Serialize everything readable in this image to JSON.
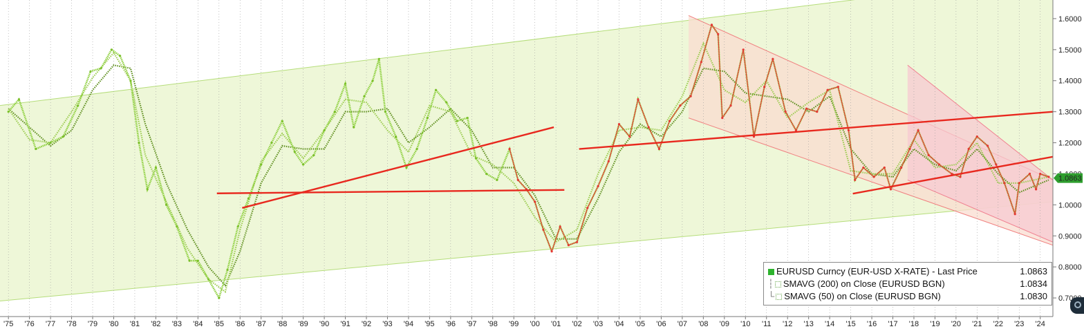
{
  "chart_data": {
    "type": "line",
    "y_axis": {
      "ticks": [
        0.7,
        0.8,
        0.9,
        1.0,
        1.1,
        1.2,
        1.3,
        1.4,
        1.5,
        1.6
      ],
      "tick_labels": [
        "0.7000",
        "0.8000",
        "0.9000",
        "1.0000",
        "1.1000",
        "1.2000",
        "1.3000",
        "1.4000",
        "1.5000",
        "1.6000"
      ],
      "position": "right",
      "ylim": [
        0.64,
        1.66
      ]
    },
    "x_axis": {
      "tick_labels": [
        "'75",
        "'76",
        "'77",
        "'78",
        "'79",
        "'80",
        "'81",
        "'82",
        "'83",
        "'84",
        "'85",
        "'86",
        "'87",
        "'88",
        "'89",
        "'90",
        "'91",
        "'92",
        "'93",
        "'94",
        "'95",
        "'96",
        "'97",
        "'98",
        "'99",
        "'00",
        "'01",
        "'02",
        "'03",
        "'04",
        "'05",
        "'06",
        "'07",
        "'08",
        "'09",
        "'10",
        "'11",
        "'12",
        "'13",
        "'14",
        "'15",
        "'16",
        "'17",
        "'18",
        "'19",
        "'20",
        "'21",
        "'22",
        "'23",
        "'24"
      ],
      "xlim": [
        1974.6,
        2024.6
      ]
    },
    "grid": "vertical dotted",
    "last_price_label": "1.0863",
    "series": [
      {
        "name": "EURUSD Curncy (EUR-USD X-RATE) - Last Price",
        "last": "1.0863",
        "color": "#e53935",
        "points": [
          [
            1975.0,
            1.3
          ],
          [
            1975.5,
            1.34
          ],
          [
            1976.3,
            1.18
          ],
          [
            1977.0,
            1.2
          ],
          [
            1977.6,
            1.22
          ],
          [
            1978.3,
            1.32
          ],
          [
            1978.9,
            1.43
          ],
          [
            1979.4,
            1.44
          ],
          [
            1979.9,
            1.5
          ],
          [
            1980.3,
            1.48
          ],
          [
            1980.8,
            1.4
          ],
          [
            1981.2,
            1.2
          ],
          [
            1981.6,
            1.05
          ],
          [
            1982.0,
            1.12
          ],
          [
            1982.5,
            1.0
          ],
          [
            1983.0,
            0.93
          ],
          [
            1983.6,
            0.82
          ],
          [
            1984.0,
            0.82
          ],
          [
            1984.5,
            0.76
          ],
          [
            1985.0,
            0.7
          ],
          [
            1985.4,
            0.79
          ],
          [
            1985.9,
            0.93
          ],
          [
            1986.4,
            1.02
          ],
          [
            1987.0,
            1.13
          ],
          [
            1987.5,
            1.2
          ],
          [
            1988.0,
            1.27
          ],
          [
            1988.6,
            1.17
          ],
          [
            1989.0,
            1.13
          ],
          [
            1989.5,
            1.16
          ],
          [
            1990.0,
            1.24
          ],
          [
            1990.5,
            1.3
          ],
          [
            1991.0,
            1.39
          ],
          [
            1991.4,
            1.25
          ],
          [
            1991.9,
            1.35
          ],
          [
            1992.3,
            1.4
          ],
          [
            1992.6,
            1.47
          ],
          [
            1992.9,
            1.3
          ],
          [
            1993.4,
            1.22
          ],
          [
            1993.9,
            1.12
          ],
          [
            1994.4,
            1.18
          ],
          [
            1994.9,
            1.28
          ],
          [
            1995.3,
            1.37
          ],
          [
            1995.8,
            1.33
          ],
          [
            1996.3,
            1.27
          ],
          [
            1996.8,
            1.28
          ],
          [
            1997.2,
            1.15
          ],
          [
            1997.7,
            1.1
          ],
          [
            1998.2,
            1.08
          ],
          [
            1998.8,
            1.18
          ],
          [
            1999.2,
            1.08
          ],
          [
            1999.6,
            1.05
          ],
          [
            2000.0,
            1.01
          ],
          [
            2000.4,
            0.92
          ],
          [
            2000.8,
            0.85
          ],
          [
            2001.2,
            0.93
          ],
          [
            2001.6,
            0.87
          ],
          [
            2002.0,
            0.88
          ],
          [
            2002.5,
            0.99
          ],
          [
            2003.0,
            1.06
          ],
          [
            2003.5,
            1.14
          ],
          [
            2004.0,
            1.26
          ],
          [
            2004.5,
            1.22
          ],
          [
            2004.9,
            1.34
          ],
          [
            2005.4,
            1.25
          ],
          [
            2005.9,
            1.18
          ],
          [
            2006.4,
            1.27
          ],
          [
            2006.9,
            1.32
          ],
          [
            2007.4,
            1.35
          ],
          [
            2007.9,
            1.46
          ],
          [
            2008.4,
            1.58
          ],
          [
            2008.7,
            1.55
          ],
          [
            2008.9,
            1.28
          ],
          [
            2009.3,
            1.32
          ],
          [
            2009.9,
            1.5
          ],
          [
            2010.4,
            1.22
          ],
          [
            2010.9,
            1.38
          ],
          [
            2011.3,
            1.47
          ],
          [
            2011.9,
            1.3
          ],
          [
            2012.4,
            1.24
          ],
          [
            2012.9,
            1.31
          ],
          [
            2013.4,
            1.3
          ],
          [
            2013.9,
            1.37
          ],
          [
            2014.4,
            1.38
          ],
          [
            2014.9,
            1.24
          ],
          [
            2015.2,
            1.08
          ],
          [
            2015.6,
            1.12
          ],
          [
            2016.1,
            1.09
          ],
          [
            2016.6,
            1.12
          ],
          [
            2016.9,
            1.05
          ],
          [
            2017.4,
            1.12
          ],
          [
            2017.8,
            1.18
          ],
          [
            2018.2,
            1.24
          ],
          [
            2018.7,
            1.16
          ],
          [
            2019.2,
            1.13
          ],
          [
            2019.8,
            1.1
          ],
          [
            2020.2,
            1.09
          ],
          [
            2020.6,
            1.18
          ],
          [
            2021.0,
            1.22
          ],
          [
            2021.5,
            1.19
          ],
          [
            2021.9,
            1.13
          ],
          [
            2022.3,
            1.07
          ],
          [
            2022.8,
            0.97
          ],
          [
            2023.0,
            1.07
          ],
          [
            2023.5,
            1.1
          ],
          [
            2023.8,
            1.05
          ],
          [
            2024.0,
            1.1
          ],
          [
            2024.4,
            1.09
          ]
        ]
      },
      {
        "name": "SMAVG (200) on Close (EURUSD BGN)",
        "last": "1.0834",
        "color": "#5f8f1f",
        "points": [
          [
            1975.0,
            1.31
          ],
          [
            1976.0,
            1.25
          ],
          [
            1977.0,
            1.19
          ],
          [
            1978.0,
            1.24
          ],
          [
            1979.0,
            1.37
          ],
          [
            1980.0,
            1.45
          ],
          [
            1980.8,
            1.44
          ],
          [
            1981.5,
            1.26
          ],
          [
            1982.5,
            1.07
          ],
          [
            1983.5,
            0.92
          ],
          [
            1984.5,
            0.8
          ],
          [
            1985.3,
            0.74
          ],
          [
            1986.0,
            0.85
          ],
          [
            1987.0,
            1.07
          ],
          [
            1988.0,
            1.19
          ],
          [
            1989.0,
            1.18
          ],
          [
            1990.0,
            1.18
          ],
          [
            1991.0,
            1.3
          ],
          [
            1992.0,
            1.3
          ],
          [
            1993.0,
            1.31
          ],
          [
            1994.0,
            1.2
          ],
          [
            1995.0,
            1.25
          ],
          [
            1996.0,
            1.31
          ],
          [
            1997.0,
            1.24
          ],
          [
            1998.0,
            1.12
          ],
          [
            1999.0,
            1.12
          ],
          [
            2000.0,
            1.03
          ],
          [
            2001.0,
            0.89
          ],
          [
            2002.0,
            0.89
          ],
          [
            2003.0,
            1.02
          ],
          [
            2004.0,
            1.17
          ],
          [
            2005.0,
            1.26
          ],
          [
            2006.0,
            1.22
          ],
          [
            2007.0,
            1.3
          ],
          [
            2008.0,
            1.44
          ],
          [
            2009.0,
            1.43
          ],
          [
            2010.0,
            1.36
          ],
          [
            2011.0,
            1.35
          ],
          [
            2012.0,
            1.34
          ],
          [
            2013.0,
            1.3
          ],
          [
            2014.0,
            1.35
          ],
          [
            2015.0,
            1.18
          ],
          [
            2016.0,
            1.1
          ],
          [
            2017.0,
            1.09
          ],
          [
            2018.0,
            1.18
          ],
          [
            2019.0,
            1.13
          ],
          [
            2020.0,
            1.11
          ],
          [
            2021.0,
            1.18
          ],
          [
            2022.0,
            1.1
          ],
          [
            2023.0,
            1.04
          ],
          [
            2024.4,
            1.08
          ]
        ]
      },
      {
        "name": "SMAVG (50) on Close (EURUSD BGN)",
        "last": "1.0830",
        "color": "#9ccc50",
        "points": [
          [
            1975.0,
            1.31
          ],
          [
            1976.0,
            1.21
          ],
          [
            1977.0,
            1.2
          ],
          [
            1978.0,
            1.3
          ],
          [
            1979.0,
            1.41
          ],
          [
            1980.0,
            1.49
          ],
          [
            1980.8,
            1.4
          ],
          [
            1981.5,
            1.16
          ],
          [
            1982.5,
            1.01
          ],
          [
            1983.5,
            0.86
          ],
          [
            1984.5,
            0.76
          ],
          [
            1985.3,
            0.72
          ],
          [
            1986.0,
            0.92
          ],
          [
            1987.0,
            1.14
          ],
          [
            1988.0,
            1.23
          ],
          [
            1989.0,
            1.15
          ],
          [
            1990.0,
            1.24
          ],
          [
            1991.0,
            1.34
          ],
          [
            1992.0,
            1.33
          ],
          [
            1993.0,
            1.24
          ],
          [
            1994.0,
            1.17
          ],
          [
            1995.0,
            1.32
          ],
          [
            1996.0,
            1.3
          ],
          [
            1997.0,
            1.16
          ],
          [
            1998.0,
            1.13
          ],
          [
            1999.0,
            1.07
          ],
          [
            2000.0,
            0.96
          ],
          [
            2001.0,
            0.88
          ],
          [
            2002.0,
            0.92
          ],
          [
            2003.0,
            1.1
          ],
          [
            2004.0,
            1.24
          ],
          [
            2005.0,
            1.25
          ],
          [
            2006.0,
            1.24
          ],
          [
            2007.0,
            1.35
          ],
          [
            2008.0,
            1.52
          ],
          [
            2009.0,
            1.37
          ],
          [
            2010.0,
            1.33
          ],
          [
            2011.0,
            1.4
          ],
          [
            2012.0,
            1.28
          ],
          [
            2013.0,
            1.33
          ],
          [
            2014.0,
            1.37
          ],
          [
            2015.0,
            1.11
          ],
          [
            2016.0,
            1.1
          ],
          [
            2017.0,
            1.1
          ],
          [
            2018.0,
            1.21
          ],
          [
            2019.0,
            1.12
          ],
          [
            2020.0,
            1.13
          ],
          [
            2021.0,
            1.2
          ],
          [
            2022.0,
            1.07
          ],
          [
            2023.0,
            1.07
          ],
          [
            2024.4,
            1.09
          ]
        ]
      }
    ],
    "annotations": {
      "channel_outer": {
        "upper": [
          [
            1974.6,
            1.32
          ],
          [
            2024.6,
            1.74
          ]
        ],
        "lower": [
          [
            1974.6,
            0.69
          ],
          [
            2024.6,
            1.01
          ]
        ],
        "fill": "#eef7d8",
        "stroke": "#b5dd7a"
      },
      "channel_down": {
        "upper": [
          [
            2007.3,
            1.61
          ],
          [
            2024.6,
            1.08
          ]
        ],
        "lower": [
          [
            2007.3,
            1.28
          ],
          [
            2024.6,
            0.87
          ]
        ],
        "fill": "#f9dcd0",
        "stroke": "#f08080"
      },
      "channel_short": {
        "upper": [
          [
            2017.7,
            1.45
          ],
          [
            2024.6,
            1.08
          ]
        ],
        "lower": [
          [
            2017.7,
            1.08
          ],
          [
            2024.6,
            0.88
          ]
        ],
        "fill": "#f7c9d2",
        "stroke": "#f08090"
      },
      "red_lines": [
        {
          "from": [
            1984.9,
            1.037
          ],
          "to": [
            2001.4,
            1.048
          ]
        },
        {
          "from": [
            1986.1,
            0.99
          ],
          "to": [
            2000.9,
            1.25
          ]
        },
        {
          "from": [
            2002.1,
            1.18
          ],
          "to": [
            2024.6,
            1.3
          ]
        },
        {
          "from": [
            2015.1,
            1.036
          ],
          "to": [
            2024.6,
            1.155
          ]
        }
      ]
    }
  },
  "legend": {
    "rows": [
      {
        "label": "EURUSD Curncy (EUR-USD X-RATE) - Last Price",
        "value": "1.0863"
      },
      {
        "label": "SMAVG (200)  on Close (EURUSD BGN)",
        "value": "1.0834"
      },
      {
        "label": "SMAVG (50)  on Close (EURUSD BGN)",
        "value": "1.0830"
      }
    ]
  },
  "colors": {
    "last_price_tag": "#2e9e2e",
    "price_light": "#8ccf3c",
    "price_red": "#e53935"
  }
}
